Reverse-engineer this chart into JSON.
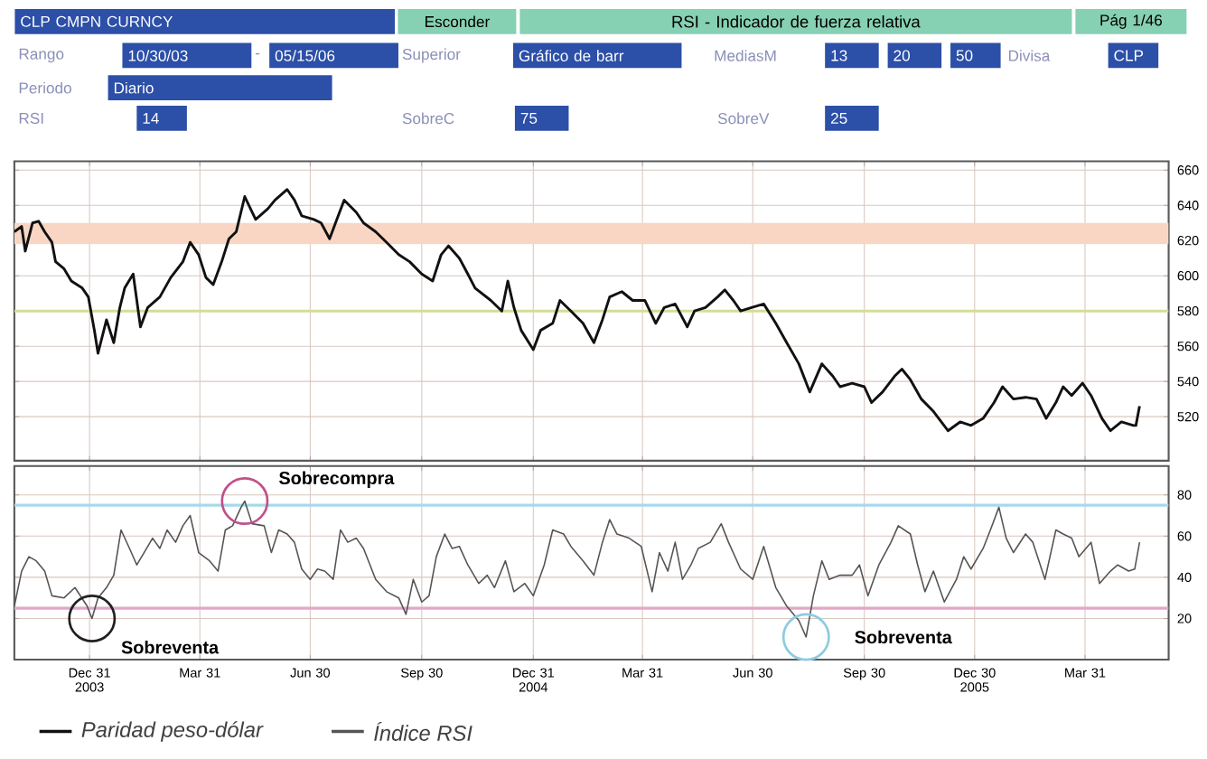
{
  "chart_data": [
    {
      "type": "other",
      "title": "RSI - Indicador de fuerza relativa",
      "annotations": [
        "CLP CMPN CURNCY",
        "Esconder",
        "Pág 1/46",
        "Rango",
        "10/30/03",
        "-",
        "05/15/06",
        "Superior",
        "Gráfico de barr",
        "MediasM",
        "13",
        "20",
        "50",
        "Divisa",
        "CLP",
        "Periodo",
        "Diario",
        "RSI",
        "14",
        "SobreC",
        "75",
        "SobreV",
        "25"
      ]
    },
    {
      "type": "line",
      "xlim": [
        "2003-10-30",
        "2006-06-08"
      ],
      "ylim": [
        495,
        665
      ],
      "yticks": [
        520,
        540,
        560,
        580,
        600,
        620,
        640,
        660
      ],
      "xticks": [
        {
          "value": "2003-12-31",
          "label": null
        },
        {
          "value": "2004-03-31",
          "label": null
        },
        {
          "value": "2004-06-30",
          "label": null
        },
        {
          "value": "2004-09-30",
          "label": null
        },
        {
          "value": "2004-12-31",
          "label": null
        },
        {
          "value": "2005-03-31",
          "label": null
        },
        {
          "value": "2005-06-30",
          "label": null
        },
        {
          "value": "2005-09-30",
          "label": null
        },
        {
          "value": "2005-12-30",
          "label": null
        },
        {
          "value": "2006-03-31",
          "label": null
        }
      ],
      "tick_labels": "y",
      "grid": true,
      "legend": "bottom",
      "bands": [
        {
          "axis": "y",
          "from": 618,
          "to": 630,
          "color": "#f9d6c4"
        }
      ],
      "ref_lines": [
        {
          "axis": "y",
          "value": 580,
          "color": "#d6dc96"
        }
      ],
      "series": [
        {
          "name": "Paridad peso-dólar",
          "color": "#111111",
          "x": [
            "2003-10-30",
            "2003-11-05",
            "2003-11-08",
            "2003-11-14",
            "2003-11-19",
            "2003-11-24",
            "2003-11-30",
            "2003-12-03",
            "2003-12-10",
            "2003-12-16",
            "2003-12-25",
            "2003-12-30",
            "2004-01-04",
            "2004-01-07",
            "2004-01-14",
            "2004-01-20",
            "2004-01-25",
            "2004-01-29",
            "2004-02-05",
            "2004-02-11",
            "2004-02-17",
            "2004-02-27",
            "2004-03-07",
            "2004-03-17",
            "2004-03-23",
            "2004-03-30",
            "2004-04-05",
            "2004-04-11",
            "2004-04-18",
            "2004-04-24",
            "2004-04-30",
            "2004-05-07",
            "2004-05-16",
            "2004-05-26",
            "2004-06-01",
            "2004-06-11",
            "2004-06-17",
            "2004-06-23",
            "2004-07-03",
            "2004-07-09",
            "2004-07-16",
            "2004-07-22",
            "2004-07-28",
            "2004-08-07",
            "2004-08-13",
            "2004-08-23",
            "2004-09-01",
            "2004-09-11",
            "2004-09-20",
            "2004-09-30",
            "2004-10-09",
            "2004-10-16",
            "2004-10-22",
            "2004-10-31",
            "2004-11-07",
            "2004-11-13",
            "2004-11-26",
            "2004-12-05",
            "2004-12-10",
            "2004-12-15",
            "2004-12-21",
            "2004-12-31",
            "2005-01-06",
            "2005-01-16",
            "2005-01-22",
            "2005-01-31",
            "2005-02-10",
            "2005-02-19",
            "2005-02-26",
            "2005-03-04",
            "2005-03-14",
            "2005-03-23",
            "2005-04-02",
            "2005-04-11",
            "2005-04-18",
            "2005-04-27",
            "2005-05-07",
            "2005-05-13",
            "2005-05-22",
            "2005-06-01",
            "2005-06-07",
            "2005-06-14",
            "2005-06-20",
            "2005-06-29",
            "2005-07-09",
            "2005-07-19",
            "2005-07-28",
            "2005-08-07",
            "2005-08-16",
            "2005-08-26",
            "2005-09-04",
            "2005-09-10",
            "2005-09-20",
            "2005-09-30",
            "2005-10-06",
            "2005-10-15",
            "2005-10-25",
            "2005-10-31",
            "2005-11-07",
            "2005-11-16",
            "2005-11-26",
            "2005-12-08",
            "2005-12-18",
            "2005-12-27",
            "2006-01-06",
            "2006-01-15",
            "2006-01-22",
            "2006-01-31",
            "2006-02-10",
            "2006-02-19",
            "2006-02-27",
            "2006-03-07",
            "2006-03-13",
            "2006-03-20",
            "2006-03-29",
            "2006-04-05",
            "2006-04-14",
            "2006-04-21",
            "2006-04-30",
            "2006-05-10",
            "2006-05-12",
            "2006-05-15"
          ],
          "values": [
            625,
            628,
            614,
            630,
            631,
            625,
            619,
            608,
            604,
            597,
            593,
            588,
            569,
            556,
            575,
            562,
            582,
            593,
            601,
            571,
            582,
            588,
            599,
            608,
            619,
            612,
            599,
            595,
            608,
            621,
            625,
            645,
            632,
            638,
            643,
            649,
            643,
            634,
            632,
            630,
            621,
            632,
            643,
            636,
            630,
            625,
            619,
            612,
            608,
            601,
            597,
            612,
            617,
            610,
            601,
            593,
            586,
            580,
            597,
            582,
            569,
            558,
            569,
            573,
            586,
            580,
            573,
            562,
            575,
            588,
            591,
            586,
            586,
            573,
            582,
            584,
            571,
            580,
            582,
            588,
            592,
            586,
            580,
            582,
            584,
            573,
            562,
            550,
            534,
            550,
            543,
            537,
            539,
            537,
            528,
            534,
            543,
            547,
            541,
            530,
            523,
            512,
            517,
            515,
            519,
            528,
            537,
            530,
            531,
            530,
            519,
            528,
            537,
            532,
            539,
            532,
            519,
            512,
            517,
            515,
            515,
            526
          ]
        }
      ]
    },
    {
      "type": "line",
      "xlim": [
        "2003-10-30",
        "2006-06-08"
      ],
      "ylim": [
        0,
        94
      ],
      "yticks": [
        20,
        40,
        60,
        80
      ],
      "xticks": [
        {
          "value": "2003-12-31",
          "label": "Dec 31 2003"
        },
        {
          "value": "2004-03-31",
          "label": "Mar 31"
        },
        {
          "value": "2004-06-30",
          "label": "Jun 30"
        },
        {
          "value": "2004-09-30",
          "label": "Sep 30"
        },
        {
          "value": "2004-12-31",
          "label": "Dec 31 2004"
        },
        {
          "value": "2005-03-31",
          "label": "Mar 31"
        },
        {
          "value": "2005-06-30",
          "label": "Jun 30"
        },
        {
          "value": "2005-09-30",
          "label": "Sep 30"
        },
        {
          "value": "2005-12-30",
          "label": "Dec 30 2005"
        },
        {
          "value": "2006-03-31",
          "label": "Mar 31"
        }
      ],
      "grid": true,
      "legend": "bottom",
      "ref_lines": [
        {
          "axis": "y",
          "value": 75,
          "color": "#a8d8ec"
        },
        {
          "axis": "y",
          "value": 25,
          "color": "#e2a6c8"
        }
      ],
      "annotations": [
        {
          "text": "Sobrecompra",
          "x": "2004-05-07",
          "y": 77
        },
        {
          "text": "Sobreventa",
          "x": "2004-01-02",
          "y": 20
        },
        {
          "text": "Sobreventa",
          "x": "2005-08-13",
          "y": 11
        }
      ],
      "series": [
        {
          "name": "Índice RSI",
          "color": "#555555",
          "x": [
            "2003-10-30",
            "2003-11-05",
            "2003-11-11",
            "2003-11-17",
            "2003-11-24",
            "2003-11-30",
            "2003-12-10",
            "2003-12-19",
            "2003-12-29",
            "2004-01-02",
            "2004-01-07",
            "2004-01-14",
            "2004-01-20",
            "2004-01-26",
            "2004-02-02",
            "2004-02-08",
            "2004-02-14",
            "2004-02-21",
            "2004-02-27",
            "2004-03-04",
            "2004-03-11",
            "2004-03-17",
            "2004-03-23",
            "2004-03-30",
            "2004-04-08",
            "2004-04-15",
            "2004-04-21",
            "2004-04-27",
            "2004-05-04",
            "2004-05-07",
            "2004-05-13",
            "2004-05-23",
            "2004-05-29",
            "2004-06-04",
            "2004-06-11",
            "2004-06-17",
            "2004-06-23",
            "2004-06-30",
            "2004-07-06",
            "2004-07-12",
            "2004-07-19",
            "2004-07-25",
            "2004-07-31",
            "2004-08-07",
            "2004-08-13",
            "2004-08-23",
            "2004-09-01",
            "2004-09-11",
            "2004-09-17",
            "2004-09-23",
            "2004-09-30",
            "2004-10-06",
            "2004-10-12",
            "2004-10-19",
            "2004-10-25",
            "2004-10-31",
            "2004-11-07",
            "2004-11-16",
            "2004-11-23",
            "2004-11-29",
            "2004-12-08",
            "2004-12-15",
            "2004-12-24",
            "2004-12-31",
            "2005-01-09",
            "2005-01-16",
            "2005-01-25",
            "2005-01-31",
            "2005-02-10",
            "2005-02-19",
            "2005-02-26",
            "2005-03-04",
            "2005-03-10",
            "2005-03-20",
            "2005-03-30",
            "2005-04-08",
            "2005-04-14",
            "2005-04-21",
            "2005-04-27",
            "2005-05-03",
            "2005-05-10",
            "2005-05-16",
            "2005-05-26",
            "2005-06-04",
            "2005-06-10",
            "2005-06-20",
            "2005-06-30",
            "2005-07-09",
            "2005-07-19",
            "2005-07-28",
            "2005-08-07",
            "2005-08-13",
            "2005-08-19",
            "2005-08-26",
            "2005-09-01",
            "2005-09-10",
            "2005-09-20",
            "2005-09-26",
            "2005-10-03",
            "2005-10-12",
            "2005-10-22",
            "2005-10-28",
            "2005-11-07",
            "2005-11-13",
            "2005-11-19",
            "2005-11-26",
            "2005-12-05",
            "2005-12-15",
            "2005-12-21",
            "2005-12-27",
            "2006-01-06",
            "2006-01-12",
            "2006-01-19",
            "2006-01-25",
            "2006-01-31",
            "2006-02-10",
            "2006-02-16",
            "2006-02-26",
            "2006-03-07",
            "2006-03-13",
            "2006-03-20",
            "2006-03-26",
            "2006-04-05",
            "2006-04-12",
            "2006-04-21",
            "2006-04-27",
            "2006-05-06",
            "2006-05-11",
            "2006-05-15"
          ],
          "values": [
            26,
            43,
            50,
            48,
            43,
            31,
            30,
            35,
            26,
            20,
            30,
            35,
            41,
            63,
            54,
            46,
            52,
            59,
            54,
            63,
            57,
            65,
            70,
            52,
            48,
            43,
            63,
            65,
            74,
            77,
            66,
            65,
            52,
            63,
            61,
            57,
            44,
            39,
            44,
            43,
            39,
            63,
            57,
            59,
            54,
            39,
            33,
            30,
            22,
            39,
            28,
            31,
            50,
            61,
            54,
            55,
            46,
            37,
            41,
            35,
            48,
            33,
            37,
            31,
            46,
            63,
            61,
            55,
            48,
            41,
            57,
            68,
            61,
            59,
            55,
            33,
            52,
            43,
            57,
            39,
            46,
            54,
            57,
            66,
            57,
            44,
            39,
            55,
            35,
            26,
            19,
            11,
            31,
            48,
            39,
            41,
            41,
            46,
            31,
            46,
            57,
            65,
            61,
            46,
            33,
            43,
            28,
            39,
            50,
            44,
            54,
            63,
            74,
            59,
            52,
            61,
            57,
            39,
            63,
            61,
            59,
            50,
            57,
            37,
            43,
            46,
            43,
            44,
            57
          ]
        }
      ]
    }
  ]
}
